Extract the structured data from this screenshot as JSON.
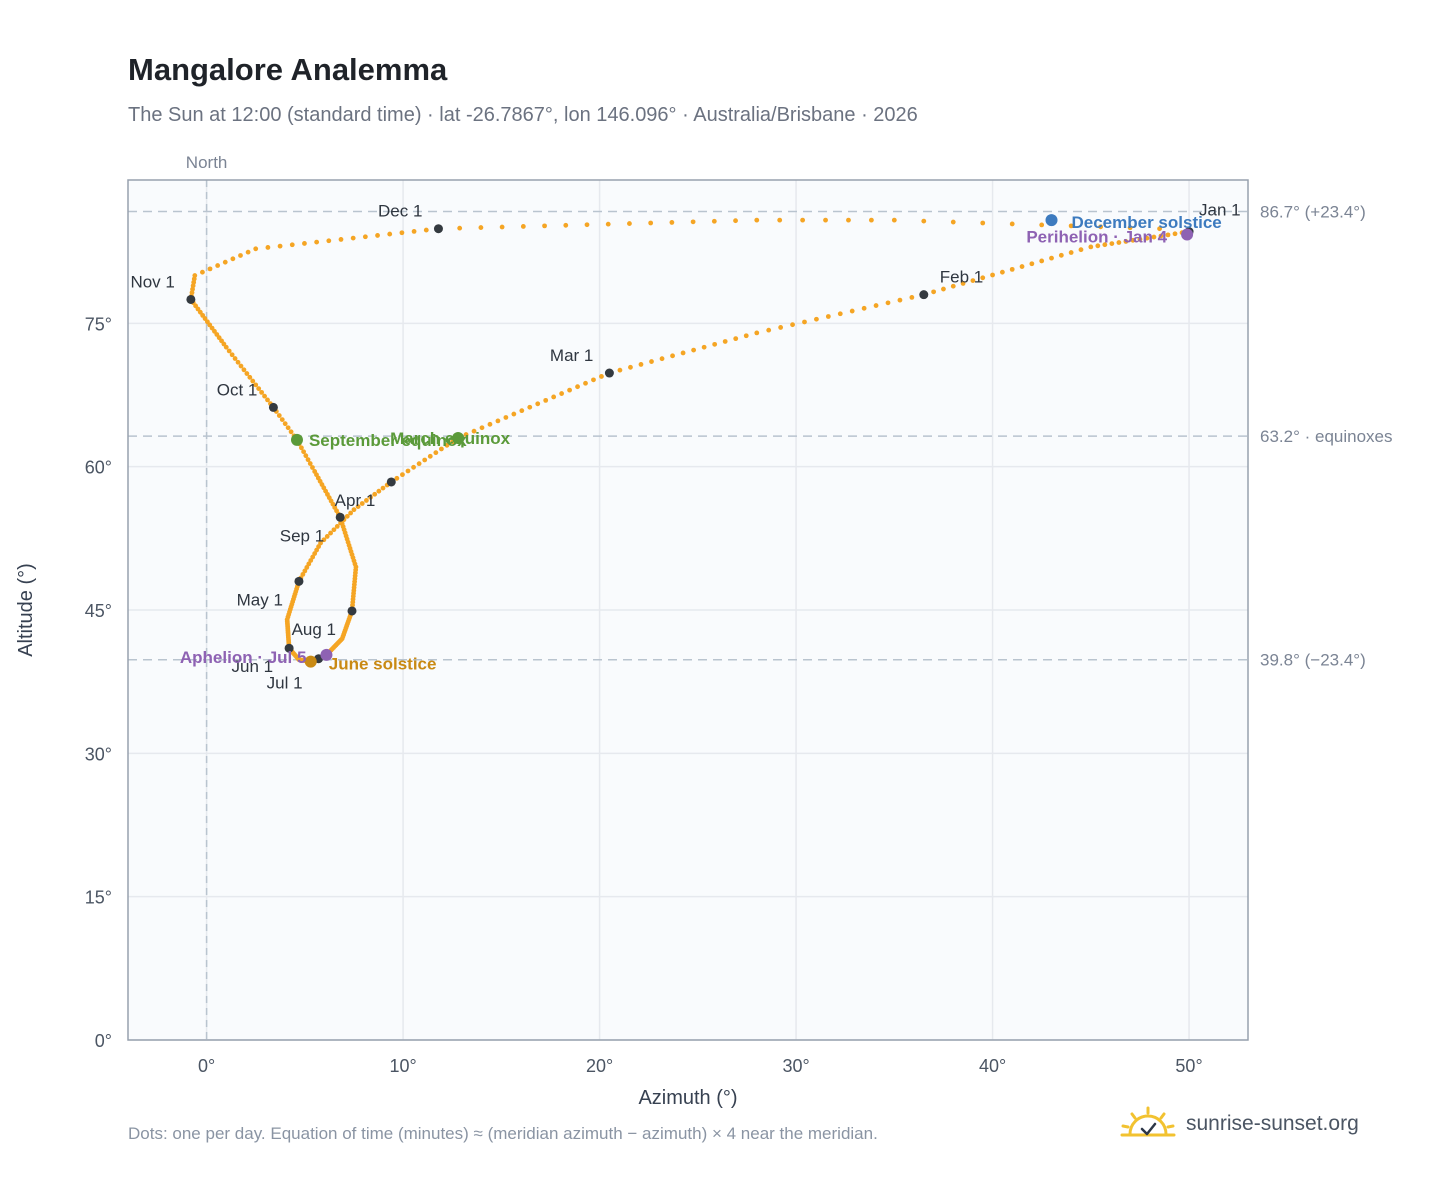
{
  "header": {
    "title": "Mangalore Analemma",
    "subtitle": "The Sun at 12:00 (standard time) · lat -26.7867°, lon 146.096° · Australia/Brisbane · 2026"
  },
  "footer": {
    "note": "Dots: one per day. Equation of time (minutes) ≈ (meridian azimuth − azimuth) × 4 near the meridian.",
    "brand": "sunrise-sunset.org"
  },
  "chart_data": {
    "type": "scatter",
    "xlabel": "Azimuth (°)",
    "ylabel": "Altitude (°)",
    "xlim": [
      -4,
      53
    ],
    "ylim": [
      0,
      90
    ],
    "grid": true,
    "x_ticks": [
      0,
      10,
      20,
      30,
      40,
      50
    ],
    "x_tick_labels": [
      "0°",
      "10°",
      "20°",
      "30°",
      "40°",
      "50°"
    ],
    "y_ticks": [
      0,
      15,
      30,
      45,
      60,
      75
    ],
    "y_tick_labels": [
      "0°",
      "15°",
      "30°",
      "45°",
      "60°",
      "75°"
    ],
    "meridian": {
      "azimuth": 0,
      "label": "North"
    },
    "reference_lines": [
      {
        "altitude": 86.7,
        "label": "86.7° (+23.4°)"
      },
      {
        "altitude": 63.2,
        "label": "63.2° · equinoxes"
      },
      {
        "altitude": 39.8,
        "label": "39.8° (−23.4°)"
      }
    ],
    "colors": {
      "daily": "#f5a524",
      "month": "#343a40",
      "equinox": "#5b9a3a",
      "december_solstice": "#3d7bbf",
      "june_solstice": "#c98a14",
      "apsis": "#8e62b3",
      "grid": "#e6e9ee",
      "plot_bg": "#f9fbfd",
      "frame": "#97a1ae",
      "ref_line": "#b9c4cf"
    },
    "anchors": [
      {
        "doy": 1,
        "az": 50.0,
        "alt": 84.6
      },
      {
        "doy": 15,
        "az": 45.0,
        "alt": 83.0
      },
      {
        "doy": 32,
        "az": 36.5,
        "alt": 78.0
      },
      {
        "doy": 46,
        "az": 28.0,
        "alt": 74.0
      },
      {
        "doy": 60,
        "az": 20.5,
        "alt": 69.8
      },
      {
        "doy": 79,
        "az": 12.8,
        "alt": 63.0
      },
      {
        "doy": 91,
        "az": 9.4,
        "alt": 58.4
      },
      {
        "doy": 100,
        "az": 7.5,
        "alt": 55.5
      },
      {
        "doy": 110,
        "az": 5.8,
        "alt": 52.0
      },
      {
        "doy": 121,
        "az": 4.7,
        "alt": 48.0
      },
      {
        "doy": 136,
        "az": 4.1,
        "alt": 44.0
      },
      {
        "doy": 152,
        "az": 4.2,
        "alt": 41.0
      },
      {
        "doy": 163,
        "az": 4.7,
        "alt": 39.8
      },
      {
        "doy": 172,
        "az": 5.3,
        "alt": 39.6
      },
      {
        "doy": 182,
        "az": 5.7,
        "alt": 39.9
      },
      {
        "doy": 187,
        "az": 6.1,
        "alt": 40.3
      },
      {
        "doy": 200,
        "az": 6.9,
        "alt": 42.0
      },
      {
        "doy": 213,
        "az": 7.4,
        "alt": 44.9
      },
      {
        "doy": 228,
        "az": 7.6,
        "alt": 49.5
      },
      {
        "doy": 244,
        "az": 6.8,
        "alt": 54.7
      },
      {
        "doy": 258,
        "az": 5.5,
        "alt": 59.5
      },
      {
        "doy": 266,
        "az": 4.6,
        "alt": 62.8
      },
      {
        "doy": 274,
        "az": 3.4,
        "alt": 66.2
      },
      {
        "doy": 290,
        "az": 1.0,
        "alt": 72.5
      },
      {
        "doy": 305,
        "az": -0.8,
        "alt": 77.5
      },
      {
        "doy": 312,
        "az": -0.6,
        "alt": 80.0
      },
      {
        "doy": 320,
        "az": 2.5,
        "alt": 82.8
      },
      {
        "doy": 335,
        "az": 11.8,
        "alt": 84.9
      },
      {
        "doy": 350,
        "az": 28.0,
        "alt": 85.8
      },
      {
        "doy": 356,
        "az": 35.0,
        "alt": 85.8
      },
      {
        "doy": 365,
        "az": 48.5,
        "alt": 84.9
      }
    ],
    "month_markers": [
      {
        "label": "Jan 1",
        "az": 50.0,
        "alt": 84.6,
        "anchor": "start",
        "dx": 10,
        "dy": -16
      },
      {
        "label": "Feb 1",
        "az": 36.5,
        "alt": 78.0,
        "anchor": "start",
        "dx": 16,
        "dy": -12
      },
      {
        "label": "Mar 1",
        "az": 20.5,
        "alt": 69.8,
        "anchor": "end",
        "dx": -16,
        "dy": -12
      },
      {
        "label": "Apr 1",
        "az": 9.4,
        "alt": 58.4,
        "anchor": "end",
        "dx": -16,
        "dy": 24
      },
      {
        "label": "May 1",
        "az": 4.7,
        "alt": 48.0,
        "anchor": "end",
        "dx": -16,
        "dy": 24
      },
      {
        "label": "Jun 1",
        "az": 4.2,
        "alt": 41.0,
        "anchor": "end",
        "dx": -16,
        "dy": 24
      },
      {
        "label": "Jul 1",
        "az": 5.7,
        "alt": 39.9,
        "anchor": "end",
        "dx": -16,
        "dy": 30
      },
      {
        "label": "Aug 1",
        "az": 7.4,
        "alt": 44.9,
        "anchor": "end",
        "dx": -16,
        "dy": 24
      },
      {
        "label": "Sep 1",
        "az": 6.8,
        "alt": 54.7,
        "anchor": "end",
        "dx": -16,
        "dy": 24
      },
      {
        "label": "Oct 1",
        "az": 3.4,
        "alt": 66.2,
        "anchor": "end",
        "dx": -16,
        "dy": -12
      },
      {
        "label": "Nov 1",
        "az": -0.8,
        "alt": 77.5,
        "anchor": "end",
        "dx": -16,
        "dy": -12
      },
      {
        "label": "Dec 1",
        "az": 11.8,
        "alt": 84.9,
        "anchor": "end",
        "dx": -16,
        "dy": -12
      }
    ],
    "events": [
      {
        "label": "March equinox",
        "az": 12.8,
        "alt": 63.0,
        "color": "#5b9a3a",
        "anchor": "end",
        "dx": 52,
        "dy": 6
      },
      {
        "label": "September equinox",
        "az": 4.6,
        "alt": 62.8,
        "color": "#5b9a3a",
        "anchor": "start",
        "dx": 12,
        "dy": 6
      },
      {
        "label": "June solstice",
        "az": 5.3,
        "alt": 39.6,
        "color": "#c98a14",
        "anchor": "start",
        "dx": 18,
        "dy": 8
      },
      {
        "label": "December solstice",
        "az": 43.0,
        "alt": 85.8,
        "color": "#3d7bbf",
        "anchor": "start",
        "dx": 20,
        "dy": 8
      },
      {
        "label": "Perihelion · Jan 4",
        "az": 49.9,
        "alt": 84.3,
        "color": "#8e62b3",
        "anchor": "end",
        "dx": -20,
        "dy": 8
      },
      {
        "label": "Aphelion · Jul 5",
        "az": 6.1,
        "alt": 40.3,
        "color": "#8e62b3",
        "anchor": "end",
        "dx": -20,
        "dy": 8
      }
    ]
  }
}
